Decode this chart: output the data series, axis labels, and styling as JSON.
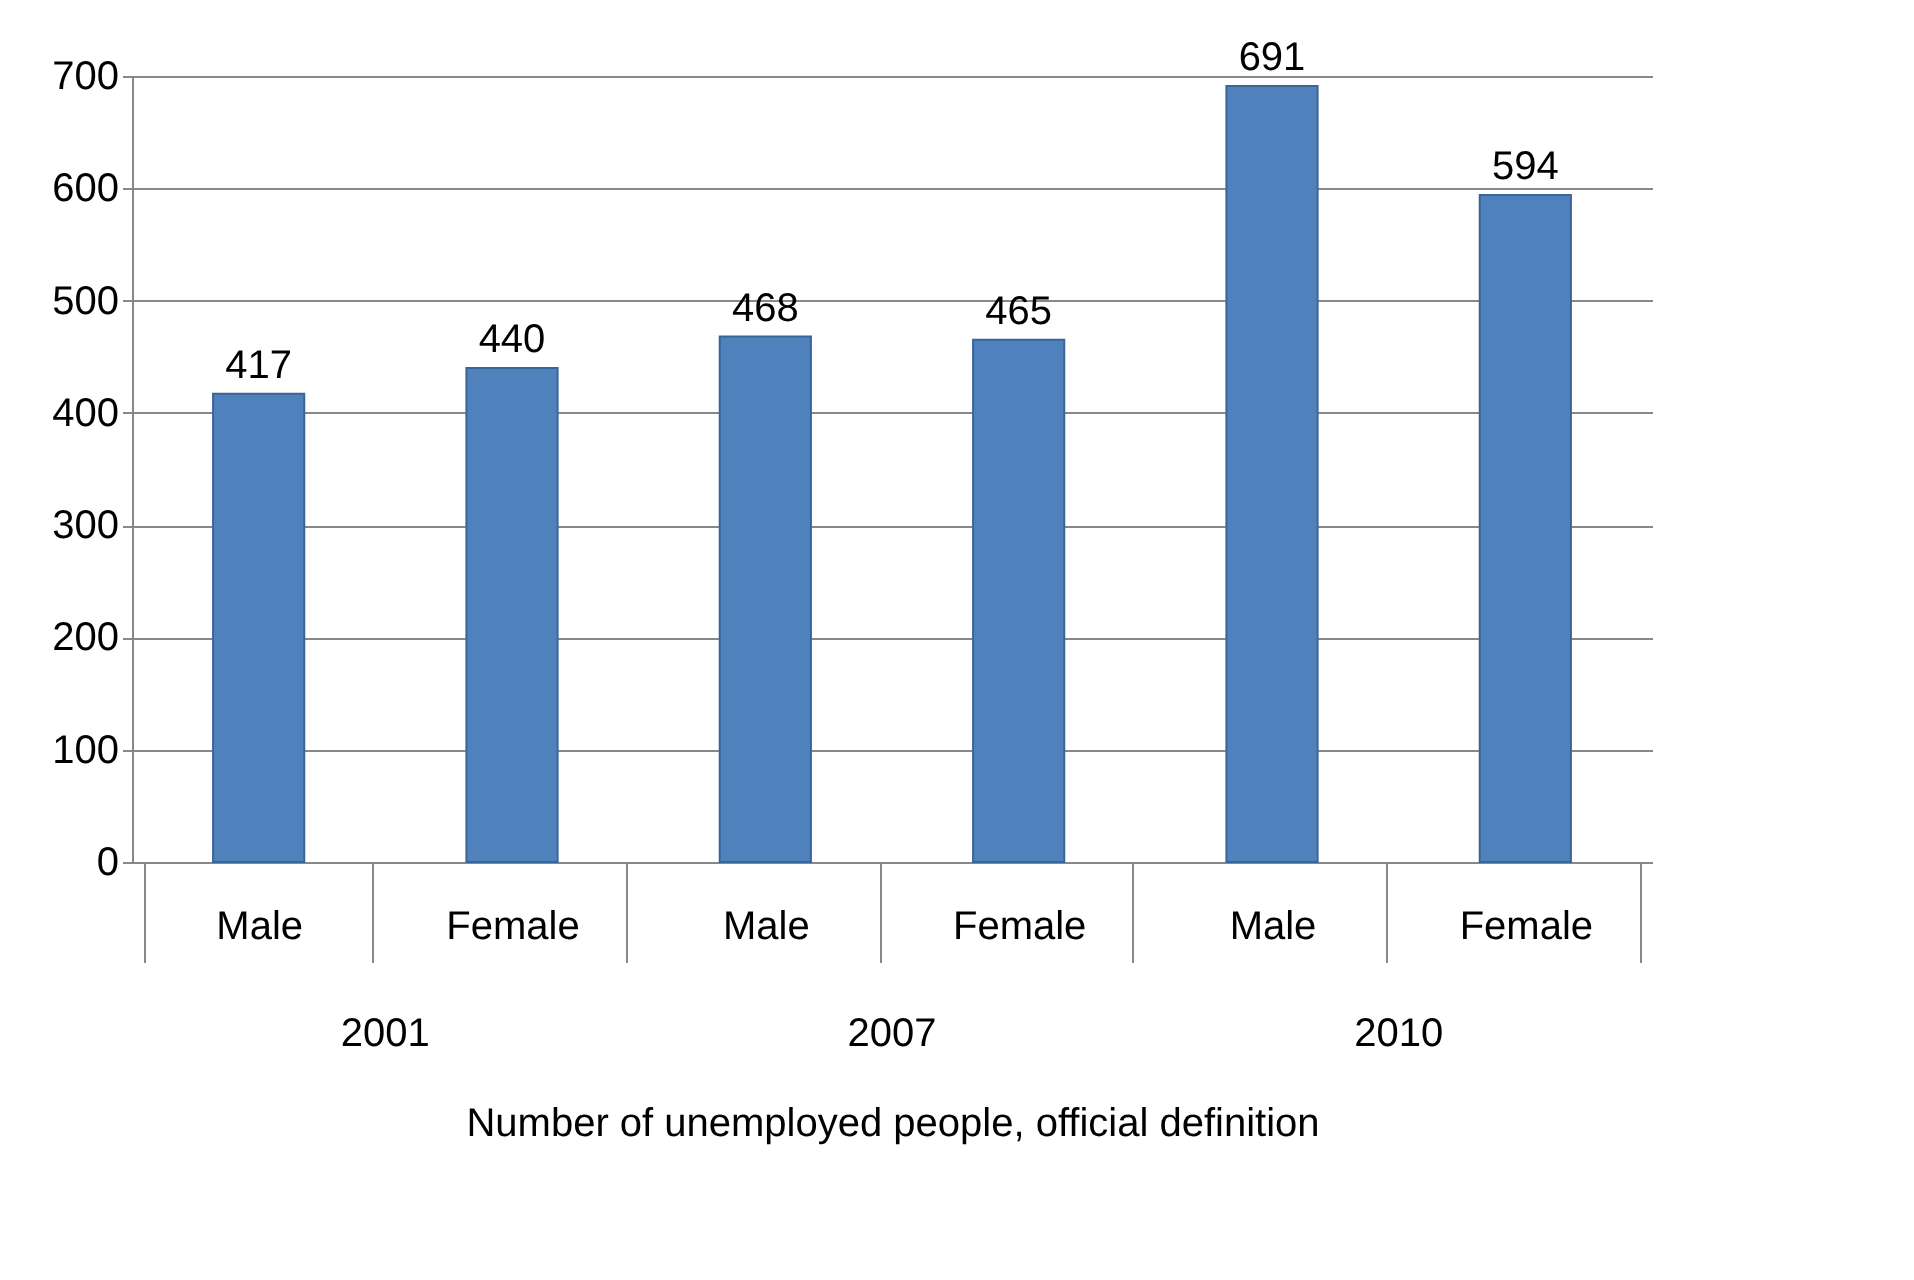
{
  "chart_data": {
    "type": "bar",
    "xlabel": "Number of unemployed people, official definition",
    "categories": [
      "Male",
      "Female",
      "Male",
      "Female",
      "Male",
      "Female"
    ],
    "values": [
      417,
      440,
      468,
      465,
      691,
      594
    ],
    "color": "#4f81bd",
    "ylim": [
      0,
      700
    ],
    "yticks": [
      0,
      100,
      200,
      300,
      400,
      500,
      600,
      700
    ],
    "grid": "y",
    "data_labels": true,
    "annotations": [
      "2001",
      "2007",
      "2010"
    ]
  }
}
